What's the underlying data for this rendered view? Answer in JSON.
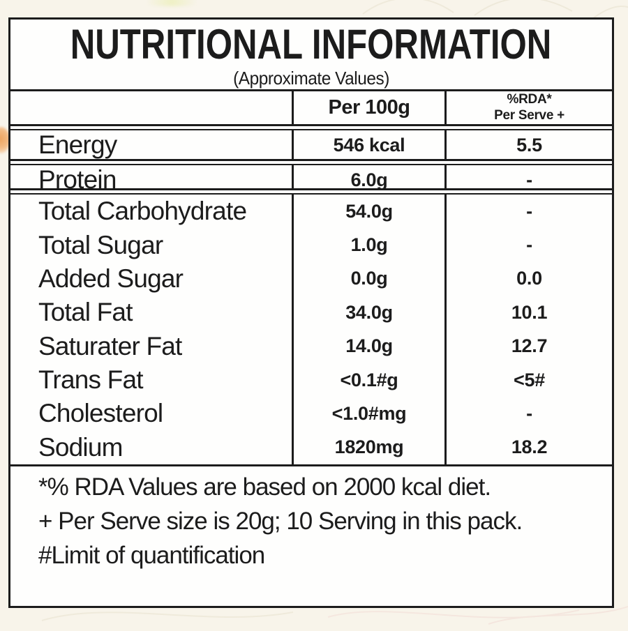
{
  "label": {
    "title": "NUTRITIONAL INFORMATION",
    "subtitle": "(Approximate Values)",
    "columns": {
      "per_100g": "Per 100g",
      "rda_line1": "%RDA*",
      "rda_line2": "Per Serve +"
    },
    "rows": [
      {
        "section": "energy",
        "name": "Energy",
        "per100g": "546 kcal",
        "rda": "5.5"
      },
      {
        "section": "protein",
        "name": "Protein",
        "per100g": "6.0g",
        "rda": "-"
      },
      {
        "section": "main",
        "name": "Total Carbohydrate",
        "per100g": "54.0g",
        "rda": "-"
      },
      {
        "section": "main",
        "name": "Total Sugar",
        "per100g": "1.0g",
        "rda": "-"
      },
      {
        "section": "main",
        "name": "Added Sugar",
        "per100g": "0.0g",
        "rda": "0.0"
      },
      {
        "section": "main",
        "name": "Total Fat",
        "per100g": "34.0g",
        "rda": "10.1"
      },
      {
        "section": "main",
        "name": "Saturater Fat",
        "per100g": "14.0g",
        "rda": "12.7"
      },
      {
        "section": "main",
        "name": "Trans Fat",
        "per100g": "<0.1#g",
        "rda": "<5#"
      },
      {
        "section": "main",
        "name": "Cholesterol",
        "per100g": "<1.0#mg",
        "rda": "-"
      },
      {
        "section": "main",
        "name": "Sodium",
        "per100g": "1820mg",
        "rda": "18.2"
      }
    ],
    "footnotes": [
      "*% RDA Values are based on 2000 kcal diet.",
      "+ Per Serve size is 20g; 10 Serving in this pack.",
      "#Limit of quantification"
    ],
    "colors": {
      "text": "#1c1c1c",
      "border": "#1c1c1c",
      "table_background": "#fefefd",
      "page_background": "#f8f4ea",
      "accent_blob": "#eda35e"
    }
  }
}
